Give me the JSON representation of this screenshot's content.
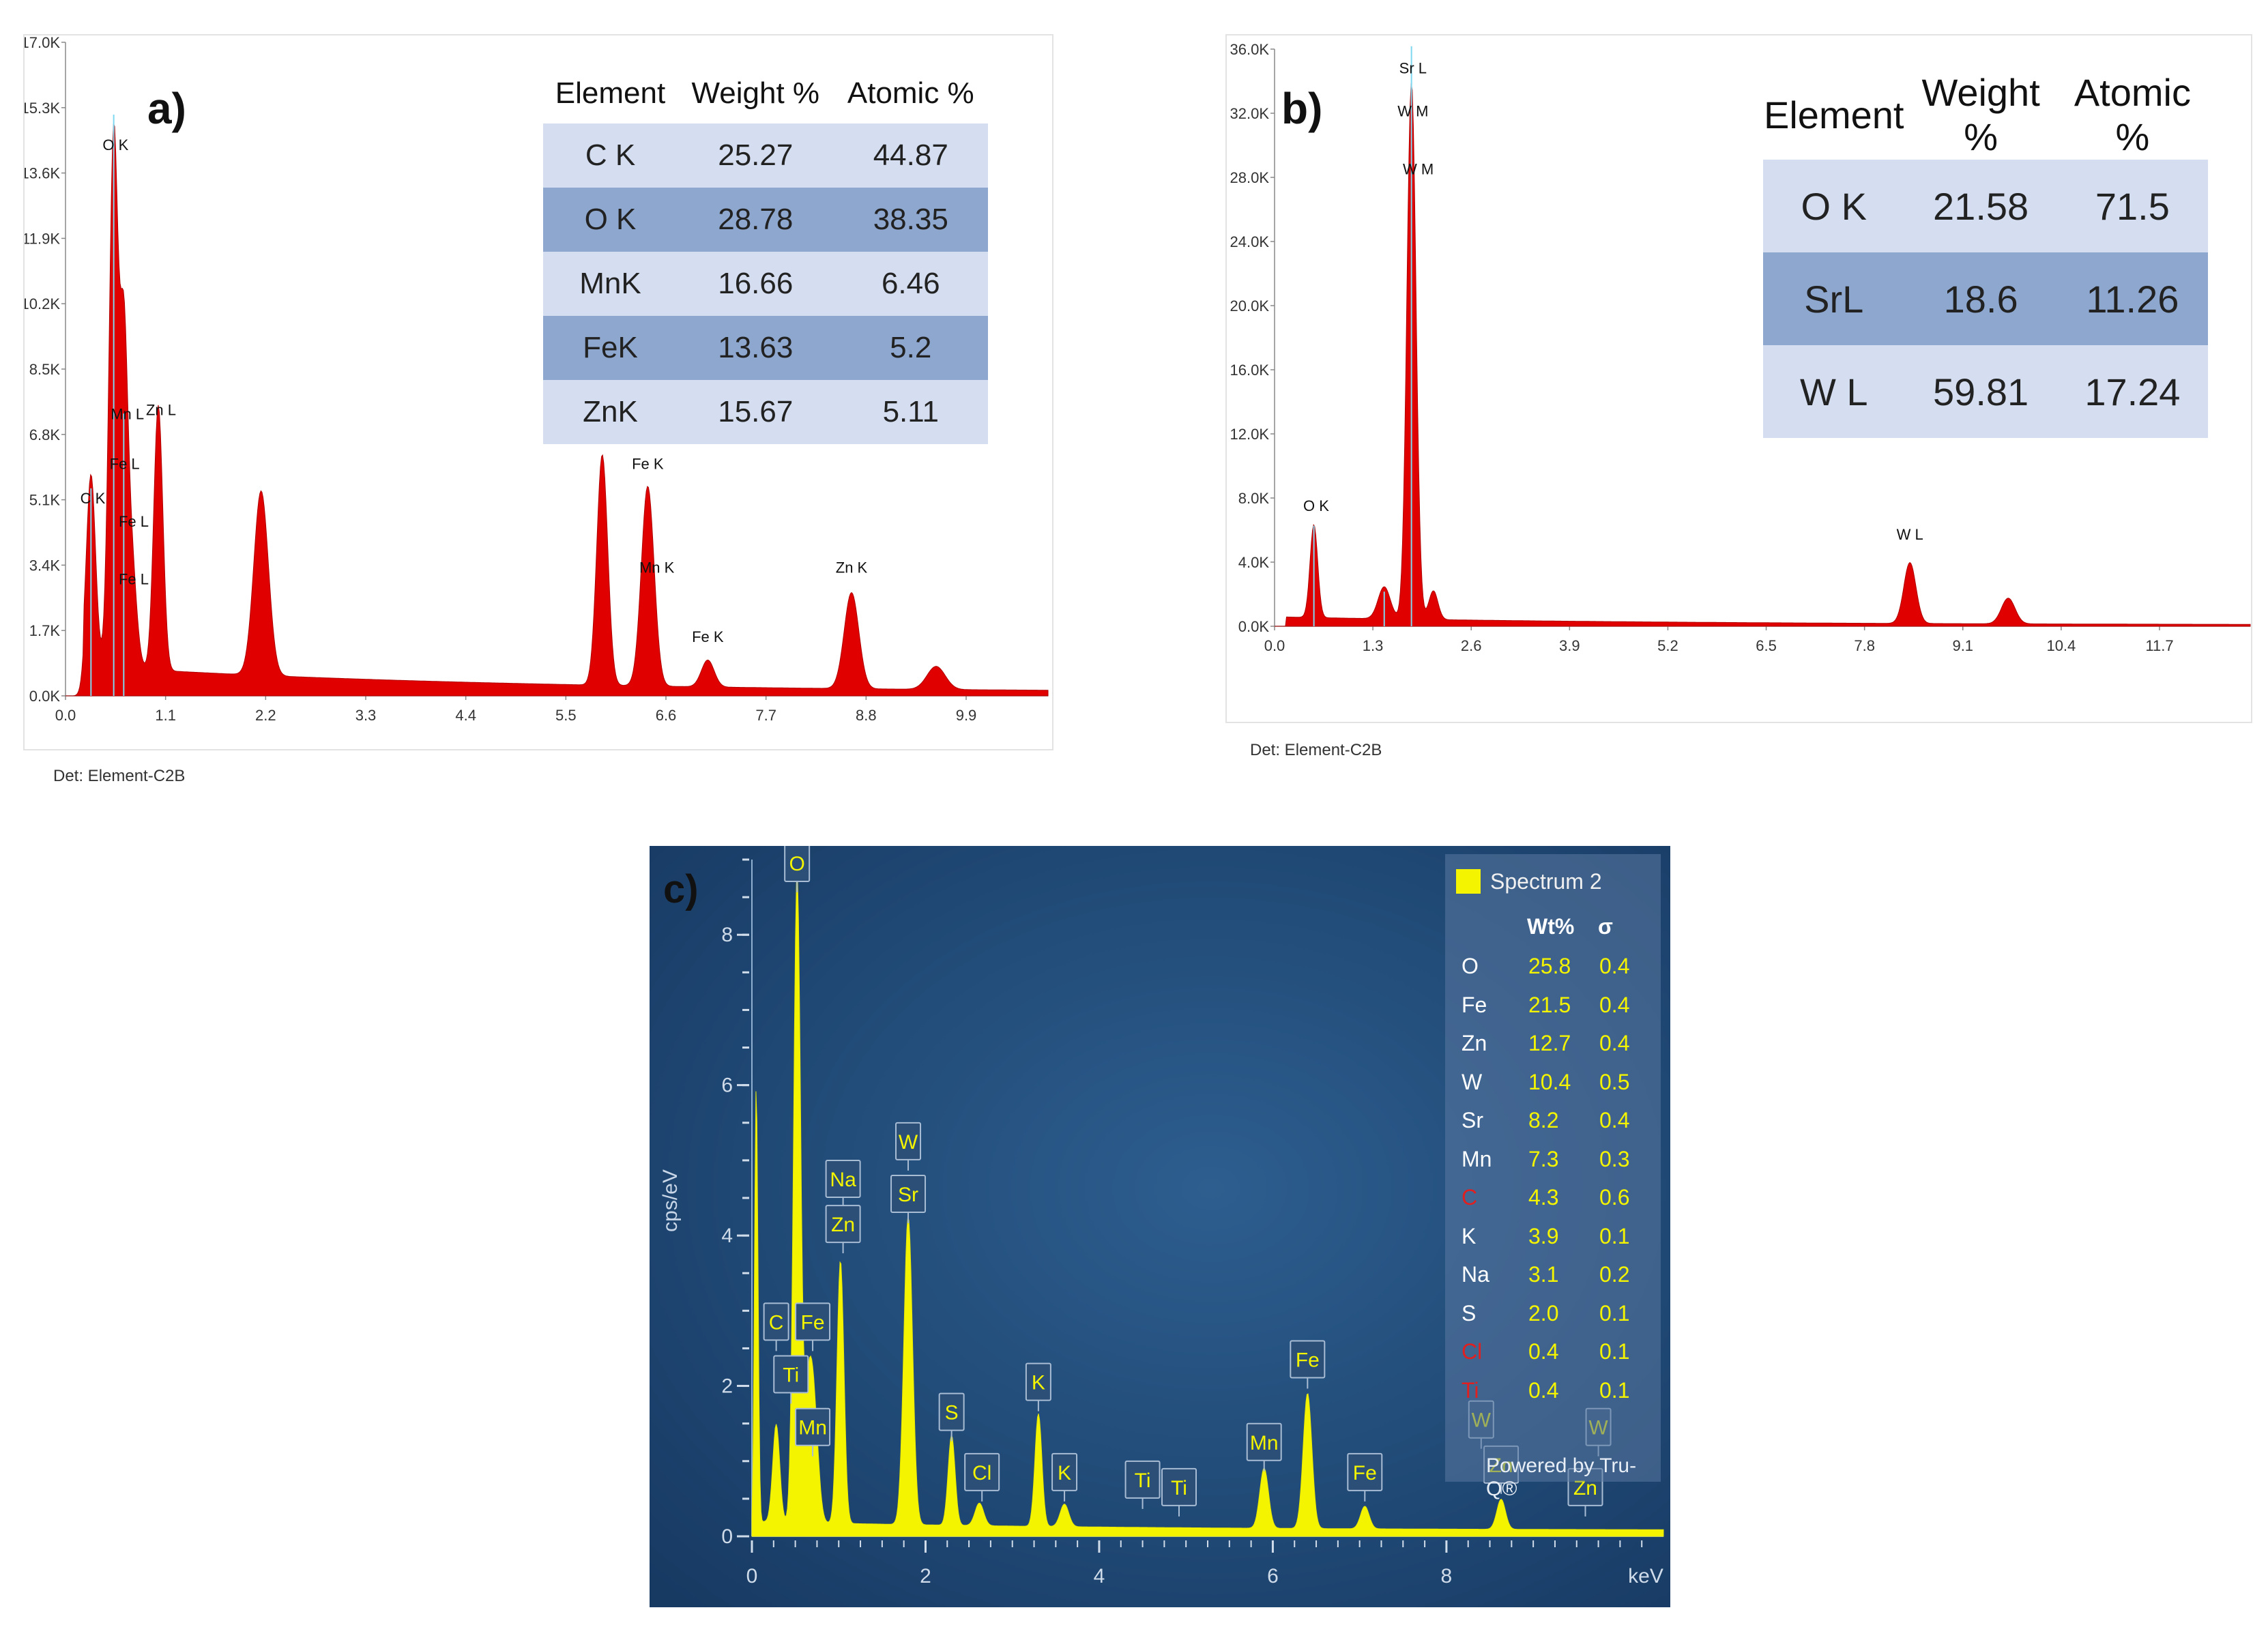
{
  "panels": {
    "a": {
      "label": "a)",
      "detector": "Det: Element-C2B",
      "table": {
        "headers": [
          "Element",
          "Weight %",
          "Atomic %"
        ],
        "rows": [
          [
            "C K",
            "25.27",
            "44.87"
          ],
          [
            "O K",
            "28.78",
            "38.35"
          ],
          [
            "MnK",
            "16.66",
            "6.46"
          ],
          [
            "FeK",
            "13.63",
            "5.2"
          ],
          [
            "ZnK",
            "15.67",
            "5.11"
          ]
        ]
      }
    },
    "b": {
      "label": "b)",
      "detector": "Det: Element-C2B",
      "table": {
        "headers": [
          "Element",
          "Weight %",
          "Atomic %"
        ],
        "rows": [
          [
            "O K",
            "21.58",
            "71.5"
          ],
          [
            "SrL",
            "18.6",
            "11.26"
          ],
          [
            "W L",
            "59.81",
            "17.24"
          ]
        ]
      }
    },
    "c": {
      "label": "c)",
      "legend": {
        "title": "Spectrum 2",
        "headers": [
          "Wt%",
          "σ"
        ],
        "rows": [
          {
            "el": "O",
            "wt": "25.8",
            "s": "0.4",
            "red": false
          },
          {
            "el": "Fe",
            "wt": "21.5",
            "s": "0.4",
            "red": false
          },
          {
            "el": "Zn",
            "wt": "12.7",
            "s": "0.4",
            "red": false
          },
          {
            "el": "W",
            "wt": "10.4",
            "s": "0.5",
            "red": false
          },
          {
            "el": "Sr",
            "wt": "8.2",
            "s": "0.4",
            "red": false
          },
          {
            "el": "Mn",
            "wt": "7.3",
            "s": "0.3",
            "red": false
          },
          {
            "el": "C",
            "wt": "4.3",
            "s": "0.6",
            "red": true
          },
          {
            "el": "K",
            "wt": "3.9",
            "s": "0.1",
            "red": false
          },
          {
            "el": "Na",
            "wt": "3.1",
            "s": "0.2",
            "red": false
          },
          {
            "el": "S",
            "wt": "2.0",
            "s": "0.1",
            "red": false
          },
          {
            "el": "Cl",
            "wt": "0.4",
            "s": "0.1",
            "red": true
          },
          {
            "el": "Ti",
            "wt": "0.4",
            "s": "0.1",
            "red": true
          }
        ],
        "footer": "Powered by Tru-Q®"
      }
    }
  },
  "colors": {
    "spectrum_a_b": "#e00000",
    "spectrum_c": "#f4f400",
    "panel_c_bg": "#1f4672",
    "table_light": "#d4def0",
    "table_dark": "#8ea7cf",
    "red_element": "#e02020"
  },
  "chart_data": [
    {
      "id": "a",
      "type": "area",
      "xlabel": "",
      "ylabel": "",
      "xlim": [
        0,
        10.8
      ],
      "ylim": [
        0,
        17000
      ],
      "xticks": [
        "0.0",
        "1.1",
        "2.2",
        "3.3",
        "4.4",
        "5.5",
        "6.6",
        "7.7",
        "8.8",
        "9.9"
      ],
      "yticks": [
        "0.0K",
        "1.7K",
        "3.4K",
        "5.1K",
        "6.8K",
        "8.5K",
        "10.2K",
        "11.9K",
        "13.6K",
        "15.3K",
        "17.0K"
      ],
      "peaks": [
        {
          "x": 0.28,
          "y": 5000,
          "w": 0.05
        },
        {
          "x": 0.53,
          "y": 14000,
          "w": 0.05
        },
        {
          "x": 0.64,
          "y": 6800,
          "w": 0.04
        },
        {
          "x": 0.71,
          "y": 3400,
          "w": 0.06
        },
        {
          "x": 1.02,
          "y": 6900,
          "w": 0.05
        },
        {
          "x": 2.15,
          "y": 4800,
          "w": 0.08
        },
        {
          "x": 5.9,
          "y": 6000,
          "w": 0.06
        },
        {
          "x": 6.4,
          "y": 5200,
          "w": 0.07
        },
        {
          "x": 7.06,
          "y": 700,
          "w": 0.07
        },
        {
          "x": 8.64,
          "y": 2500,
          "w": 0.08
        },
        {
          "x": 9.57,
          "y": 600,
          "w": 0.1
        }
      ],
      "peak_labels": [
        {
          "text": "O K",
          "x": 0.55,
          "y": 14200
        },
        {
          "text": "C K",
          "x": 0.3,
          "y": 5000
        },
        {
          "text": "Mn L",
          "x": 0.68,
          "y": 7200
        },
        {
          "text": "Zn L",
          "x": 1.05,
          "y": 7300
        },
        {
          "text": "Fe L",
          "x": 0.65,
          "y": 5900
        },
        {
          "text": "Fe L",
          "x": 0.75,
          "y": 4400
        },
        {
          "text": "Fe L",
          "x": 0.75,
          "y": 2900
        },
        {
          "text": "Fe K",
          "x": 6.4,
          "y": 5900
        },
        {
          "text": "Mn K",
          "x": 6.5,
          "y": 3200
        },
        {
          "text": "Fe K",
          "x": 7.06,
          "y": 1400
        },
        {
          "text": "Zn K",
          "x": 8.64,
          "y": 3200
        }
      ]
    },
    {
      "id": "b",
      "type": "area",
      "xlabel": "",
      "ylabel": "",
      "xlim": [
        0,
        12.9
      ],
      "ylim": [
        0,
        36000
      ],
      "xticks": [
        "0.0",
        "1.3",
        "2.6",
        "3.9",
        "5.2",
        "6.5",
        "7.8",
        "9.1",
        "10.4",
        "11.7"
      ],
      "yticks": [
        "0.0K",
        "4.0K",
        "8.0K",
        "12.0K",
        "16.0K",
        "20.0K",
        "24.0K",
        "28.0K",
        "32.0K",
        "36.0K"
      ],
      "peaks": [
        {
          "x": 0.52,
          "y": 5800,
          "w": 0.05
        },
        {
          "x": 1.45,
          "y": 2000,
          "w": 0.08
        },
        {
          "x": 1.81,
          "y": 33500,
          "w": 0.06
        },
        {
          "x": 2.1,
          "y": 1800,
          "w": 0.06
        },
        {
          "x": 8.4,
          "y": 3800,
          "w": 0.08
        },
        {
          "x": 9.7,
          "y": 1600,
          "w": 0.09
        }
      ],
      "peak_labels": [
        {
          "text": "Sr L",
          "x": 1.83,
          "y": 34500
        },
        {
          "text": "W M",
          "x": 1.83,
          "y": 31800
        },
        {
          "text": "W M",
          "x": 1.9,
          "y": 28200
        },
        {
          "text": "O K",
          "x": 0.55,
          "y": 7200
        },
        {
          "text": "W L",
          "x": 8.4,
          "y": 5400
        }
      ]
    },
    {
      "id": "c",
      "type": "area",
      "xlabel": "keV",
      "ylabel": "cps/eV",
      "xlim": [
        0,
        10.5
      ],
      "ylim": [
        0,
        9
      ],
      "xticks": [
        "0",
        "2",
        "4",
        "6",
        "8"
      ],
      "yticks": [
        "0",
        "2",
        "4",
        "6",
        "8"
      ],
      "peaks": [
        {
          "x": 0.05,
          "y": 5.8,
          "w": 0.02
        },
        {
          "x": 0.28,
          "y": 1.3,
          "w": 0.04
        },
        {
          "x": 0.52,
          "y": 8.6,
          "w": 0.04
        },
        {
          "x": 0.65,
          "y": 1.6,
          "w": 0.05
        },
        {
          "x": 0.72,
          "y": 1.2,
          "w": 0.05
        },
        {
          "x": 1.02,
          "y": 3.5,
          "w": 0.04
        },
        {
          "x": 1.8,
          "y": 4.1,
          "w": 0.05
        },
        {
          "x": 2.3,
          "y": 1.2,
          "w": 0.04
        },
        {
          "x": 2.62,
          "y": 0.3,
          "w": 0.05
        },
        {
          "x": 3.3,
          "y": 1.5,
          "w": 0.04
        },
        {
          "x": 3.6,
          "y": 0.3,
          "w": 0.05
        },
        {
          "x": 5.9,
          "y": 0.8,
          "w": 0.05
        },
        {
          "x": 6.4,
          "y": 1.8,
          "w": 0.05
        },
        {
          "x": 7.06,
          "y": 0.3,
          "w": 0.05
        },
        {
          "x": 8.63,
          "y": 0.4,
          "w": 0.05
        }
      ],
      "peak_labels": [
        {
          "text": "O",
          "x": 0.52,
          "y": 8.8
        },
        {
          "text": "W",
          "x": 1.8,
          "y": 5.1
        },
        {
          "text": "Sr",
          "x": 1.8,
          "y": 4.4
        },
        {
          "text": "Na",
          "x": 1.05,
          "y": 4.6
        },
        {
          "text": "Zn",
          "x": 1.05,
          "y": 4.0
        },
        {
          "text": "C",
          "x": 0.28,
          "y": 2.7
        },
        {
          "text": "Fe",
          "x": 0.7,
          "y": 2.7
        },
        {
          "text": "Ti",
          "x": 0.45,
          "y": 2.0
        },
        {
          "text": "Mn",
          "x": 0.7,
          "y": 1.3
        },
        {
          "text": "S",
          "x": 2.3,
          "y": 1.5
        },
        {
          "text": "Cl",
          "x": 2.65,
          "y": 0.7
        },
        {
          "text": "K",
          "x": 3.3,
          "y": 1.9
        },
        {
          "text": "K",
          "x": 3.6,
          "y": 0.7
        },
        {
          "text": "Ti",
          "x": 4.5,
          "y": 0.6
        },
        {
          "text": "Ti",
          "x": 4.92,
          "y": 0.5
        },
        {
          "text": "Mn",
          "x": 5.9,
          "y": 1.1
        },
        {
          "text": "Fe",
          "x": 6.4,
          "y": 2.2
        },
        {
          "text": "Fe",
          "x": 7.06,
          "y": 0.7
        },
        {
          "text": "W",
          "x": 8.4,
          "y": 1.4
        },
        {
          "text": "Zn",
          "x": 8.63,
          "y": 0.8
        },
        {
          "text": "W",
          "x": 9.75,
          "y": 1.3
        },
        {
          "text": "Zn",
          "x": 9.6,
          "y": 0.5
        }
      ]
    }
  ]
}
